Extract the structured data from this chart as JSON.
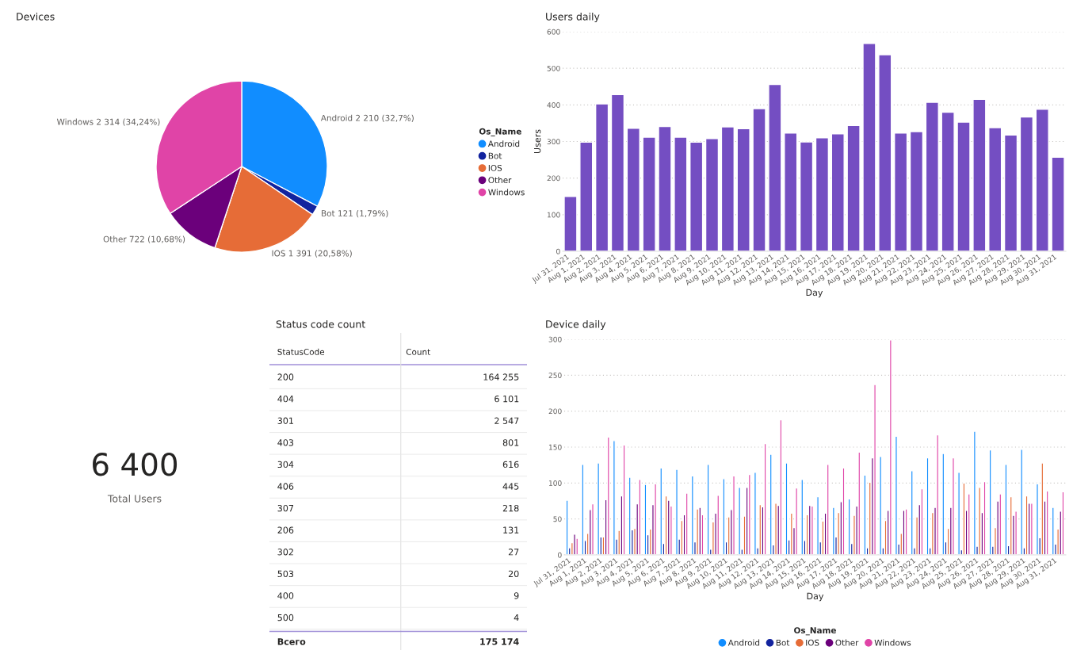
{
  "chart_data": [
    {
      "type": "pie",
      "title": "Devices",
      "legend_title": "Os_Name",
      "legend": "right",
      "categories": [
        "Android",
        "Bot",
        "IOS",
        "Other",
        "Windows"
      ],
      "values": [
        2210,
        121,
        1391,
        722,
        2314
      ],
      "value_labels": [
        "Android 2 210 (32,7%)",
        "Bot 121 (1,79%)",
        "IOS 1 391 (20,58%)",
        "Other 722 (10,68%)",
        "Windows 2 314 (34,24%)"
      ],
      "colors": [
        "#118dff",
        "#12239e",
        "#e66c37",
        "#6b007b",
        "#e044a7"
      ]
    },
    {
      "type": "bar",
      "title": "Users daily",
      "xlabel": "Day",
      "ylabel": "Users",
      "categories": [
        "Jul 31, 2021",
        "Aug 1, 2021",
        "Aug 2, 2021",
        "Aug 3, 2021",
        "Aug 4, 2021",
        "Aug 5, 2021",
        "Aug 6, 2021",
        "Aug 7, 2021",
        "Aug 8, 2021",
        "Aug 9, 2021",
        "Aug 10, 2021",
        "Aug 11, 2021",
        "Aug 12, 2021",
        "Aug 13, 2021",
        "Aug 14, 2021",
        "Aug 15, 2021",
        "Aug 16, 2021",
        "Aug 17, 2021",
        "Aug 18, 2021",
        "Aug 19, 2021",
        "Aug 20, 2021",
        "Aug 21, 2021",
        "Aug 22, 2021",
        "Aug 23, 2021",
        "Aug 24, 2021",
        "Aug 25, 2021",
        "Aug 26, 2021",
        "Aug 27, 2021",
        "Aug 28, 2021",
        "Aug 29, 2021",
        "Aug 30, 2021",
        "Aug 31, 2021"
      ],
      "series": [
        {
          "color": "#744ec2",
          "values": [
            150,
            298,
            403,
            428,
            336,
            312,
            341,
            312,
            298,
            308,
            340,
            335,
            390,
            456,
            323,
            299,
            310,
            321,
            344,
            568,
            537,
            323,
            327,
            407,
            380,
            353,
            415,
            338,
            318,
            367,
            388,
            257
          ]
        }
      ],
      "ylim": [
        0,
        600
      ],
      "yticks": [
        0,
        100,
        200,
        300,
        400,
        500,
        600
      ],
      "grid": "y"
    },
    {
      "type": "other",
      "values": [
        6400
      ],
      "value_labels": [
        "6 400"
      ],
      "annotations": [
        "Total Users"
      ]
    },
    {
      "type": "other",
      "title": "Status code count",
      "xlabel": "StatusCode",
      "ylabel": "Count",
      "categories": [
        "200",
        "404",
        "301",
        "403",
        "304",
        "406",
        "307",
        "206",
        "302",
        "503",
        "400",
        "500"
      ],
      "values": [
        164255,
        6101,
        2547,
        801,
        616,
        445,
        218,
        131,
        27,
        20,
        9,
        4
      ],
      "value_labels": [
        "164 255",
        "6 101",
        "2 547",
        "801",
        "616",
        "445",
        "218",
        "131",
        "27",
        "20",
        "9",
        "4"
      ],
      "totals": [
        "175 174"
      ],
      "annotations": [
        "Всего"
      ]
    },
    {
      "type": "bar",
      "title": "Device daily",
      "xlabel": "Day",
      "legend_title": "Os_Name",
      "legend": "bottom",
      "categories": [
        "Jul 31, 2021",
        "Aug 1, 2021",
        "Aug 2, 2021",
        "Aug 3, 2021",
        "Aug 4, 2021",
        "Aug 5, 2021",
        "Aug 6, 2021",
        "Aug 7, 2021",
        "Aug 8, 2021",
        "Aug 9, 2021",
        "Aug 10, 2021",
        "Aug 11, 2021",
        "Aug 12, 2021",
        "Aug 13, 2021",
        "Aug 14, 2021",
        "Aug 15, 2021",
        "Aug 16, 2021",
        "Aug 17, 2021",
        "Aug 18, 2021",
        "Aug 19, 2021",
        "Aug 20, 2021",
        "Aug 21, 2021",
        "Aug 22, 2021",
        "Aug 23, 2021",
        "Aug 24, 2021",
        "Aug 25, 2021",
        "Aug 26, 2021",
        "Aug 27, 2021",
        "Aug 28, 2021",
        "Aug 29, 2021",
        "Aug 30, 2021",
        "Aug 31, 2021"
      ],
      "series": [
        {
          "name": "Android",
          "color": "#118dff",
          "values": [
            76,
            126,
            128,
            159,
            108,
            98,
            121,
            119,
            110,
            126,
            106,
            94,
            115,
            140,
            128,
            105,
            81,
            66,
            78,
            111,
            137,
            165,
            117,
            135,
            141,
            115,
            172,
            146,
            126,
            147,
            99,
            66
          ]
        },
        {
          "name": "Bot",
          "color": "#12239e",
          "values": [
            10,
            20,
            25,
            22,
            35,
            28,
            16,
            22,
            18,
            8,
            18,
            8,
            10,
            14,
            21,
            20,
            18,
            25,
            16,
            10,
            10,
            15,
            10,
            10,
            18,
            7,
            12,
            12,
            13,
            10,
            24,
            15
          ]
        },
        {
          "name": "IOS",
          "color": "#e66c37",
          "values": [
            17,
            30,
            25,
            34,
            37,
            36,
            82,
            48,
            64,
            46,
            53,
            54,
            70,
            72,
            58,
            56,
            47,
            59,
            55,
            101,
            48,
            30,
            53,
            59,
            37,
            100,
            94,
            38,
            81,
            82,
            128,
            36
          ]
        },
        {
          "name": "Other",
          "color": "#6b007b",
          "values": [
            29,
            63,
            77,
            82,
            71,
            70,
            76,
            56,
            66,
            58,
            63,
            94,
            67,
            69,
            38,
            69,
            58,
            74,
            68,
            135,
            62,
            62,
            70,
            66,
            66,
            62,
            59,
            75,
            55,
            72,
            75,
            61
          ]
        },
        {
          "name": "Windows",
          "color": "#e044a7",
          "values": [
            23,
            71,
            164,
            153,
            105,
            99,
            68,
            86,
            56,
            83,
            110,
            112,
            155,
            188,
            93,
            68,
            126,
            121,
            143,
            237,
            299,
            64,
            92,
            167,
            135,
            85,
            102,
            85,
            61,
            72,
            89,
            88
          ]
        }
      ],
      "ylim": [
        0,
        300
      ],
      "yticks": [
        0,
        50,
        100,
        150,
        200,
        250,
        300
      ],
      "grid": "y"
    }
  ]
}
